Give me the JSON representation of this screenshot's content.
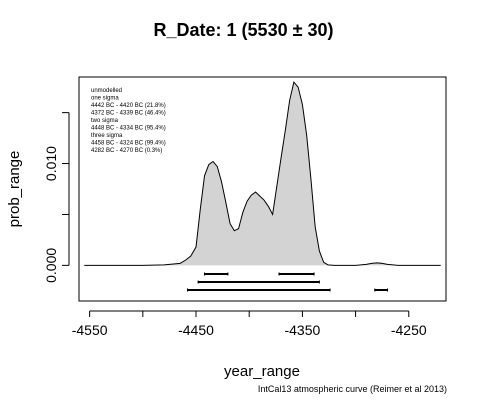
{
  "chart_data": {
    "type": "area",
    "title": "R_Date: 1 (5530  ±  30)",
    "xlabel": "year_range",
    "ylabel": "prob_range",
    "xlim": [
      -4560,
      -4215
    ],
    "ylim": [
      -0.0035,
      0.0185
    ],
    "x_ticks": [
      {
        "value": -4550,
        "label": "-4550"
      },
      {
        "value": -4500,
        "label": ""
      },
      {
        "value": -4450,
        "label": "-4450"
      },
      {
        "value": -4400,
        "label": ""
      },
      {
        "value": -4350,
        "label": "-4350"
      },
      {
        "value": -4300,
        "label": ""
      },
      {
        "value": -4250,
        "label": "-4250"
      }
    ],
    "y_ticks": [
      {
        "value": 0.0,
        "label": "0.000"
      },
      {
        "value": 0.005,
        "label": ""
      },
      {
        "value": 0.01,
        "label": "0.010"
      },
      {
        "value": 0.015,
        "label": ""
      }
    ],
    "fill_color": "#d3d3d3",
    "line_color": "#000000",
    "x": [
      -4555,
      -4500,
      -4480,
      -4465,
      -4460,
      -4455,
      -4450,
      -4446,
      -4442,
      -4438,
      -4434,
      -4430,
      -4426,
      -4422,
      -4418,
      -4414,
      -4410,
      -4406,
      -4402,
      -4398,
      -4394,
      -4390,
      -4386,
      -4382,
      -4378,
      -4374,
      -4370,
      -4366,
      -4362,
      -4358,
      -4354,
      -4350,
      -4346,
      -4342,
      -4338,
      -4334,
      -4330,
      -4326,
      -4320,
      -4300,
      -4290,
      -4285,
      -4280,
      -4275,
      -4270,
      -4260,
      -4220
    ],
    "y": [
      0,
      0,
      5e-05,
      0.0002,
      0.0005,
      0.0009,
      0.0018,
      0.0055,
      0.0088,
      0.0099,
      0.0102,
      0.0097,
      0.0082,
      0.0062,
      0.0041,
      0.0034,
      0.0036,
      0.0052,
      0.0063,
      0.0069,
      0.0072,
      0.0068,
      0.0064,
      0.0058,
      0.005,
      0.0078,
      0.0106,
      0.0133,
      0.0162,
      0.018,
      0.0175,
      0.0158,
      0.0128,
      0.0085,
      0.0038,
      0.0014,
      0.0003,
      5e-05,
      0,
      0,
      0.0001,
      0.0002,
      0.00025,
      0.0002,
      0.0001,
      0,
      0
    ],
    "ranges": [
      {
        "level": "one sigma",
        "row": 0,
        "segments": [
          [
            -4442,
            -4420
          ],
          [
            -4372,
            -4339
          ]
        ]
      },
      {
        "level": "two sigma",
        "row": 1,
        "segments": [
          [
            -4448,
            -4334
          ]
        ]
      },
      {
        "level": "three sigma",
        "row": 2,
        "segments": [
          [
            -4458,
            -4324
          ],
          [
            -4282,
            -4270
          ]
        ]
      }
    ],
    "legend": {
      "placement": "top-left",
      "lines": [
        "unmodelled",
        "one sigma",
        "4442 BC - 4420 BC (21.8%)",
        "4372 BC - 4339 BC (46.4%)",
        "two sigma",
        "4448 BC - 4334 BC (95.4%)",
        "three sigma",
        "4458 BC - 4324 BC (99.4%)",
        "4282 BC - 4270 BC (0.3%)"
      ]
    },
    "credit": "IntCal13 atmospheric curve (Reimer et al 2013)"
  }
}
